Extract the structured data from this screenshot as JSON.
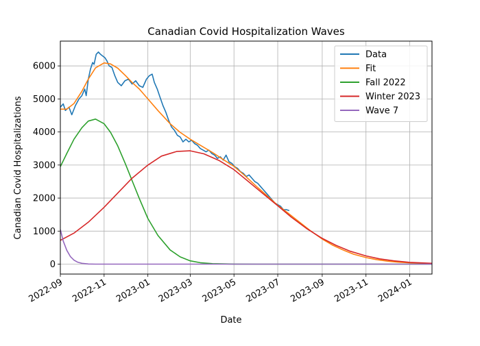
{
  "chart_data": {
    "type": "line",
    "title": "Canadian Covid Hospitalization Waves",
    "xlabel": "Date",
    "ylabel": "Canadian Covid Hospitalizations",
    "x_is_date": true,
    "xlim": [
      "2022-09-01",
      "2024-02-01"
    ],
    "ylim": [
      -300,
      6750
    ],
    "grid": true,
    "legend_position": "top-right",
    "x_ticks": [
      "2022-09",
      "2022-11",
      "2023-01",
      "2023-03",
      "2023-05",
      "2023-07",
      "2023-09",
      "2023-11",
      "2024-01"
    ],
    "y_ticks": [
      0,
      1000,
      2000,
      3000,
      4000,
      5000,
      6000
    ],
    "series": [
      {
        "name": "Data",
        "color": "#1f77b4",
        "points": [
          [
            "2022-09-01",
            4750
          ],
          [
            "2022-09-05",
            4850
          ],
          [
            "2022-09-08",
            4650
          ],
          [
            "2022-09-13",
            4750
          ],
          [
            "2022-09-17",
            4520
          ],
          [
            "2022-09-22",
            4800
          ],
          [
            "2022-09-27",
            5000
          ],
          [
            "2022-10-01",
            5100
          ],
          [
            "2022-10-05",
            5300
          ],
          [
            "2022-10-07",
            5100
          ],
          [
            "2022-10-10",
            5600
          ],
          [
            "2022-10-13",
            5900
          ],
          [
            "2022-10-16",
            6100
          ],
          [
            "2022-10-18",
            6050
          ],
          [
            "2022-10-21",
            6350
          ],
          [
            "2022-10-24",
            6420
          ],
          [
            "2022-10-27",
            6350
          ],
          [
            "2022-10-30",
            6300
          ],
          [
            "2022-11-02",
            6250
          ],
          [
            "2022-11-05",
            6150
          ],
          [
            "2022-11-08",
            6000
          ],
          [
            "2022-11-12",
            5950
          ],
          [
            "2022-11-16",
            5700
          ],
          [
            "2022-11-20",
            5500
          ],
          [
            "2022-11-25",
            5400
          ],
          [
            "2022-11-30",
            5550
          ],
          [
            "2022-12-05",
            5600
          ],
          [
            "2022-12-10",
            5450
          ],
          [
            "2022-12-15",
            5550
          ],
          [
            "2022-12-20",
            5400
          ],
          [
            "2022-12-25",
            5350
          ],
          [
            "2022-12-30",
            5600
          ],
          [
            "2023-01-03",
            5700
          ],
          [
            "2023-01-07",
            5750
          ],
          [
            "2023-01-10",
            5500
          ],
          [
            "2023-01-14",
            5300
          ],
          [
            "2023-01-18",
            5050
          ],
          [
            "2023-01-22",
            4800
          ],
          [
            "2023-01-26",
            4600
          ],
          [
            "2023-01-30",
            4350
          ],
          [
            "2023-02-03",
            4150
          ],
          [
            "2023-02-07",
            4050
          ],
          [
            "2023-02-11",
            3900
          ],
          [
            "2023-02-15",
            3850
          ],
          [
            "2023-02-19",
            3700
          ],
          [
            "2023-02-23",
            3780
          ],
          [
            "2023-02-27",
            3700
          ],
          [
            "2023-03-03",
            3750
          ],
          [
            "2023-03-07",
            3650
          ],
          [
            "2023-03-11",
            3600
          ],
          [
            "2023-03-15",
            3500
          ],
          [
            "2023-03-19",
            3450
          ],
          [
            "2023-03-23",
            3400
          ],
          [
            "2023-03-27",
            3450
          ],
          [
            "2023-03-31",
            3350
          ],
          [
            "2023-04-04",
            3300
          ],
          [
            "2023-04-08",
            3200
          ],
          [
            "2023-04-12",
            3250
          ],
          [
            "2023-04-16",
            3150
          ],
          [
            "2023-04-20",
            3300
          ],
          [
            "2023-04-24",
            3100
          ],
          [
            "2023-04-28",
            3050
          ],
          [
            "2023-05-02",
            2950
          ],
          [
            "2023-05-06",
            2900
          ],
          [
            "2023-05-10",
            2800
          ],
          [
            "2023-05-14",
            2750
          ],
          [
            "2023-05-18",
            2650
          ],
          [
            "2023-05-22",
            2700
          ],
          [
            "2023-05-26",
            2600
          ],
          [
            "2023-05-30",
            2500
          ],
          [
            "2023-06-03",
            2450
          ],
          [
            "2023-06-07",
            2350
          ],
          [
            "2023-06-11",
            2250
          ],
          [
            "2023-06-15",
            2150
          ],
          [
            "2023-06-19",
            2050
          ],
          [
            "2023-06-23",
            1950
          ],
          [
            "2023-06-27",
            1850
          ],
          [
            "2023-07-01",
            1800
          ],
          [
            "2023-07-05",
            1750
          ],
          [
            "2023-07-09",
            1650
          ],
          [
            "2023-07-13",
            1650
          ],
          [
            "2023-07-17",
            1620
          ]
        ]
      },
      {
        "name": "Fit",
        "color": "#ff7f0e",
        "points": [
          [
            "2022-09-01",
            4690
          ],
          [
            "2022-09-10",
            4690
          ],
          [
            "2022-09-20",
            4860
          ],
          [
            "2022-10-01",
            5230
          ],
          [
            "2022-10-10",
            5600
          ],
          [
            "2022-10-20",
            5940
          ],
          [
            "2022-11-01",
            6090
          ],
          [
            "2022-11-10",
            6060
          ],
          [
            "2022-11-20",
            5930
          ],
          [
            "2022-12-01",
            5700
          ],
          [
            "2022-12-10",
            5500
          ],
          [
            "2022-12-20",
            5300
          ],
          [
            "2023-01-01",
            5000
          ],
          [
            "2023-01-15",
            4650
          ],
          [
            "2023-02-01",
            4250
          ],
          [
            "2023-02-15",
            3990
          ],
          [
            "2023-03-01",
            3780
          ],
          [
            "2023-03-15",
            3600
          ],
          [
            "2023-04-01",
            3380
          ],
          [
            "2023-04-15",
            3180
          ],
          [
            "2023-05-01",
            2960
          ],
          [
            "2023-05-15",
            2700
          ],
          [
            "2023-06-01",
            2360
          ],
          [
            "2023-06-15",
            2090
          ],
          [
            "2023-07-01",
            1780
          ],
          [
            "2023-07-15",
            1550
          ],
          [
            "2023-08-01",
            1260
          ],
          [
            "2023-08-15",
            1020
          ],
          [
            "2023-09-01",
            760
          ],
          [
            "2023-09-15",
            580
          ],
          [
            "2023-10-01",
            420
          ],
          [
            "2023-10-15",
            300
          ],
          [
            "2023-11-01",
            200
          ],
          [
            "2023-11-15",
            140
          ],
          [
            "2023-12-01",
            90
          ],
          [
            "2023-12-15",
            60
          ],
          [
            "2024-01-01",
            40
          ],
          [
            "2024-01-15",
            25
          ],
          [
            "2024-02-01",
            15
          ]
        ]
      },
      {
        "name": "Fall 2022",
        "color": "#2ca02c",
        "points": [
          [
            "2022-09-01",
            2950
          ],
          [
            "2022-09-10",
            3350
          ],
          [
            "2022-09-20",
            3780
          ],
          [
            "2022-10-01",
            4130
          ],
          [
            "2022-10-10",
            4330
          ],
          [
            "2022-10-20",
            4390
          ],
          [
            "2022-11-01",
            4250
          ],
          [
            "2022-11-10",
            3990
          ],
          [
            "2022-11-20",
            3580
          ],
          [
            "2022-12-01",
            3020
          ],
          [
            "2022-12-10",
            2530
          ],
          [
            "2022-12-20",
            1990
          ],
          [
            "2023-01-01",
            1380
          ],
          [
            "2023-01-15",
            870
          ],
          [
            "2023-02-01",
            430
          ],
          [
            "2023-02-15",
            220
          ],
          [
            "2023-03-01",
            100
          ],
          [
            "2023-03-15",
            45
          ],
          [
            "2023-04-01",
            15
          ],
          [
            "2023-05-01",
            2
          ],
          [
            "2023-06-01",
            0
          ],
          [
            "2024-02-01",
            0
          ]
        ]
      },
      {
        "name": "Winter 2023",
        "color": "#d62728",
        "points": [
          [
            "2022-09-01",
            720
          ],
          [
            "2022-09-20",
            940
          ],
          [
            "2022-10-10",
            1270
          ],
          [
            "2022-11-01",
            1720
          ],
          [
            "2022-11-20",
            2150
          ],
          [
            "2022-12-10",
            2600
          ],
          [
            "2023-01-01",
            3000
          ],
          [
            "2023-01-20",
            3270
          ],
          [
            "2023-02-10",
            3410
          ],
          [
            "2023-03-01",
            3430
          ],
          [
            "2023-03-20",
            3340
          ],
          [
            "2023-04-10",
            3140
          ],
          [
            "2023-05-01",
            2860
          ],
          [
            "2023-05-20",
            2520
          ],
          [
            "2023-06-10",
            2140
          ],
          [
            "2023-07-01",
            1770
          ],
          [
            "2023-07-20",
            1420
          ],
          [
            "2023-08-10",
            1080
          ],
          [
            "2023-09-01",
            780
          ],
          [
            "2023-09-20",
            570
          ],
          [
            "2023-10-10",
            390
          ],
          [
            "2023-11-01",
            250
          ],
          [
            "2023-11-20",
            160
          ],
          [
            "2023-12-10",
            100
          ],
          [
            "2024-01-01",
            55
          ],
          [
            "2024-02-01",
            25
          ]
        ]
      },
      {
        "name": "Wave 7",
        "color": "#9467bd",
        "points": [
          [
            "2022-09-01",
            1050
          ],
          [
            "2022-09-05",
            700
          ],
          [
            "2022-09-10",
            420
          ],
          [
            "2022-09-15",
            230
          ],
          [
            "2022-09-20",
            120
          ],
          [
            "2022-09-25",
            60
          ],
          [
            "2022-10-01",
            25
          ],
          [
            "2022-10-10",
            5
          ],
          [
            "2022-10-20",
            0
          ],
          [
            "2024-02-01",
            0
          ]
        ]
      }
    ]
  }
}
